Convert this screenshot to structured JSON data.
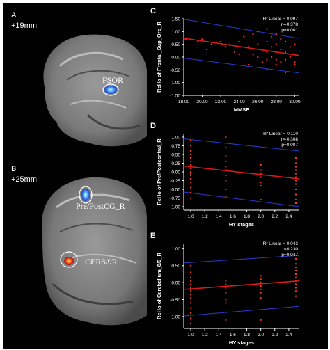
{
  "panels": {
    "A": {
      "letter": "A",
      "offset": "+19mm",
      "region_label": "FSOR"
    },
    "B": {
      "letter": "B",
      "offset": "+25mm",
      "region_labels": [
        "Pre/PostCG_R",
        "CER8/9R"
      ]
    }
  },
  "colors": {
    "background": "#000000",
    "points": "#ff3b1f",
    "fit_line": "#e01818",
    "ci_line": "#2a3cc8",
    "axis_text": "#ffffff"
  },
  "chart_data": [
    {
      "id": "C",
      "letter": "C",
      "type": "scatter",
      "xlabel": "MMSE",
      "ylabel": "ReHo of Frontal_Sup_Orb_R",
      "xlim": [
        18,
        30.5
      ],
      "ylim": [
        -1.5,
        1.5
      ],
      "xticks": [
        "18.00",
        "20.00",
        "22.00",
        "24.00",
        "26.00",
        "28.00",
        "30.00"
      ],
      "xtick_values": [
        18,
        20,
        22,
        24,
        26,
        28,
        30
      ],
      "yticks": [
        "1.50",
        "1.00",
        "0.50",
        "0.00",
        "-0.50",
        "-1.00",
        "-1.50"
      ],
      "ytick_values": [
        1.5,
        1.0,
        0.5,
        0.0,
        -0.5,
        -1.0,
        -1.5
      ],
      "stats": [
        "R² Linear = 0.097",
        "r=-0.378",
        "p=0.001"
      ],
      "fit": {
        "y_at_xmin": 0.74,
        "y_at_xmax": 0.06
      },
      "ci_upper": {
        "y_at_xmin": 1.48,
        "y_at_xmax": 0.73
      },
      "ci_lower": {
        "y_at_xmin": -0.04,
        "y_at_xmax": -0.62
      },
      "points": [
        [
          18,
          0.9
        ],
        [
          18.2,
          0.7
        ],
        [
          19.5,
          0.6
        ],
        [
          20,
          0.7
        ],
        [
          20.5,
          0.3
        ],
        [
          21,
          0.5
        ],
        [
          22,
          0.6
        ],
        [
          22.5,
          0.4
        ],
        [
          23,
          0.5
        ],
        [
          23.5,
          0.2
        ],
        [
          24,
          0.6
        ],
        [
          24,
          0.1
        ],
        [
          24.5,
          0.8
        ],
        [
          25,
          0.4
        ],
        [
          25,
          -0.3
        ],
        [
          25.5,
          0.1
        ],
        [
          25.5,
          0.9
        ],
        [
          26,
          1.0
        ],
        [
          26,
          0.5
        ],
        [
          26,
          0.0
        ],
        [
          26.5,
          0.3
        ],
        [
          26.5,
          -0.2
        ],
        [
          27,
          1.1
        ],
        [
          27,
          0.6
        ],
        [
          27,
          0.2
        ],
        [
          27,
          -0.1
        ],
        [
          27,
          -0.5
        ],
        [
          27.5,
          0.8
        ],
        [
          27.5,
          0.4
        ],
        [
          27.5,
          0.0
        ],
        [
          28,
          0.9
        ],
        [
          28,
          0.5
        ],
        [
          28,
          0.2
        ],
        [
          28,
          -0.1
        ],
        [
          28,
          -0.3
        ],
        [
          28.5,
          0.7
        ],
        [
          28.5,
          0.3
        ],
        [
          28.5,
          -0.2
        ],
        [
          29,
          0.6
        ],
        [
          29,
          0.2
        ],
        [
          29,
          -0.1
        ],
        [
          29,
          -0.6
        ],
        [
          29.5,
          0.4
        ],
        [
          29.5,
          0.0
        ],
        [
          30,
          0.5
        ],
        [
          30,
          0.1
        ],
        [
          30,
          -0.3
        ],
        [
          30,
          -0.2
        ]
      ]
    },
    {
      "id": "D",
      "letter": "D",
      "type": "scatter",
      "xlabel": "HY stages",
      "ylabel": "ReHo of Pre/Postcentral_R",
      "xlim": [
        0.9,
        2.55
      ],
      "ylim": [
        -1.1,
        1.1
      ],
      "xticks": [
        "1.0",
        "1.2",
        "1.4",
        "1.6",
        "1.8",
        "2.0",
        "2.2",
        "2.4"
      ],
      "xtick_values": [
        1.0,
        1.2,
        1.4,
        1.6,
        1.8,
        2.0,
        2.2,
        2.4
      ],
      "yticks": [
        "1.00",
        "0.75",
        "0.50",
        "0.25",
        "0.00",
        "-0.25",
        "-0.50",
        "-0.75",
        "-1.00"
      ],
      "ytick_values": [
        1.0,
        0.75,
        0.5,
        0.25,
        0.0,
        -0.25,
        -0.5,
        -0.75,
        -1.0
      ],
      "stats": [
        "R² Linear = 0.110",
        "r=-0.308",
        "p=0.007"
      ],
      "fit": {
        "y_at_xmin": 0.17,
        "y_at_xmax": -0.2
      },
      "ci_upper": {
        "y_at_xmin": 0.95,
        "y_at_xmax": 0.6
      },
      "ci_lower": {
        "y_at_xmin": -0.58,
        "y_at_xmax": -1.0
      },
      "points": [
        [
          1,
          0.9
        ],
        [
          1,
          0.75
        ],
        [
          1,
          0.6
        ],
        [
          1,
          0.5
        ],
        [
          1,
          0.4
        ],
        [
          1,
          0.3
        ],
        [
          1,
          0.2
        ],
        [
          1,
          0.1
        ],
        [
          1,
          0.0
        ],
        [
          1,
          -0.1
        ],
        [
          1,
          -0.2
        ],
        [
          1,
          -0.3
        ],
        [
          1,
          -0.45
        ],
        [
          1,
          -0.6
        ],
        [
          1,
          -0.75
        ],
        [
          1,
          0.15
        ],
        [
          1,
          -0.05
        ],
        [
          1.5,
          1.0
        ],
        [
          1.5,
          0.7
        ],
        [
          1.5,
          0.45
        ],
        [
          1.5,
          0.3
        ],
        [
          1.5,
          0.15
        ],
        [
          1.5,
          0.05
        ],
        [
          1.5,
          -0.1
        ],
        [
          1.5,
          -0.25
        ],
        [
          1.5,
          -0.5
        ],
        [
          1.5,
          -0.7
        ],
        [
          2,
          0.2
        ],
        [
          2,
          0.05
        ],
        [
          2,
          -0.05
        ],
        [
          2,
          -0.15
        ],
        [
          2,
          -0.3
        ],
        [
          2,
          -0.4
        ],
        [
          2,
          -0.8
        ],
        [
          2.5,
          0.4
        ],
        [
          2.5,
          0.25
        ],
        [
          2.5,
          0.15
        ],
        [
          2.5,
          0.05
        ],
        [
          2.5,
          -0.05
        ],
        [
          2.5,
          -0.15
        ],
        [
          2.5,
          -0.25
        ],
        [
          2.5,
          -0.35
        ],
        [
          2.5,
          -0.5
        ],
        [
          2.5,
          -0.65
        ],
        [
          2.5,
          -0.8
        ],
        [
          2.5,
          -0.9
        ]
      ]
    },
    {
      "id": "E",
      "letter": "E",
      "type": "scatter",
      "xlabel": "HY stages",
      "ylabel": "ReHo of Cerebellum_8/9_R",
      "xlim": [
        0.9,
        2.55
      ],
      "ylim": [
        -1.35,
        1.15
      ],
      "xticks": [
        "1.0",
        "1.2",
        "1.4",
        "1.6",
        "1.8",
        "2.0",
        "2.2",
        "2.4"
      ],
      "xtick_values": [
        1.0,
        1.2,
        1.4,
        1.6,
        1.8,
        2.0,
        2.2,
        2.4
      ],
      "yticks": [
        "1.00",
        "0.50",
        "0.00",
        "-0.50",
        "-1.00"
      ],
      "ytick_values": [
        1.0,
        0.5,
        0.0,
        -0.5,
        -1.0
      ],
      "stats": [
        "R² Linear = 0.043",
        "r=0.230",
        "p=0.047"
      ],
      "fit": {
        "y_at_xmin": -0.2,
        "y_at_xmax": 0.05
      },
      "ci_upper": {
        "y_at_xmin": 0.58,
        "y_at_xmax": 0.8
      },
      "ci_lower": {
        "y_at_xmin": -0.98,
        "y_at_xmax": -0.7
      },
      "points": [
        [
          1,
          0.5
        ],
        [
          1,
          0.3
        ],
        [
          1,
          0.15
        ],
        [
          1,
          0.05
        ],
        [
          1,
          -0.05
        ],
        [
          1,
          -0.15
        ],
        [
          1,
          -0.25
        ],
        [
          1,
          -0.35
        ],
        [
          1,
          -0.45
        ],
        [
          1,
          -0.6
        ],
        [
          1,
          -0.75
        ],
        [
          1,
          -0.9
        ],
        [
          1,
          -1.05
        ],
        [
          1,
          -1.2
        ],
        [
          1,
          -0.2
        ],
        [
          1.5,
          0.05
        ],
        [
          1.5,
          -0.05
        ],
        [
          1.5,
          -0.15
        ],
        [
          1.5,
          -0.3
        ],
        [
          1.5,
          -0.5
        ],
        [
          1.5,
          -0.6
        ],
        [
          1.5,
          -1.1
        ],
        [
          2,
          0.2
        ],
        [
          2,
          0.1
        ],
        [
          2,
          0.0
        ],
        [
          2,
          -0.1
        ],
        [
          2,
          -0.2
        ],
        [
          2,
          -0.3
        ],
        [
          2,
          -0.45
        ],
        [
          2,
          -1.1
        ],
        [
          2.5,
          0.7
        ],
        [
          2.5,
          0.55
        ],
        [
          2.5,
          0.45
        ],
        [
          2.5,
          0.35
        ],
        [
          2.5,
          0.25
        ],
        [
          2.5,
          0.15
        ],
        [
          2.5,
          0.05
        ],
        [
          2.5,
          -0.05
        ],
        [
          2.5,
          -0.15
        ],
        [
          2.5,
          -0.25
        ],
        [
          2.5,
          -0.4
        ]
      ]
    }
  ]
}
